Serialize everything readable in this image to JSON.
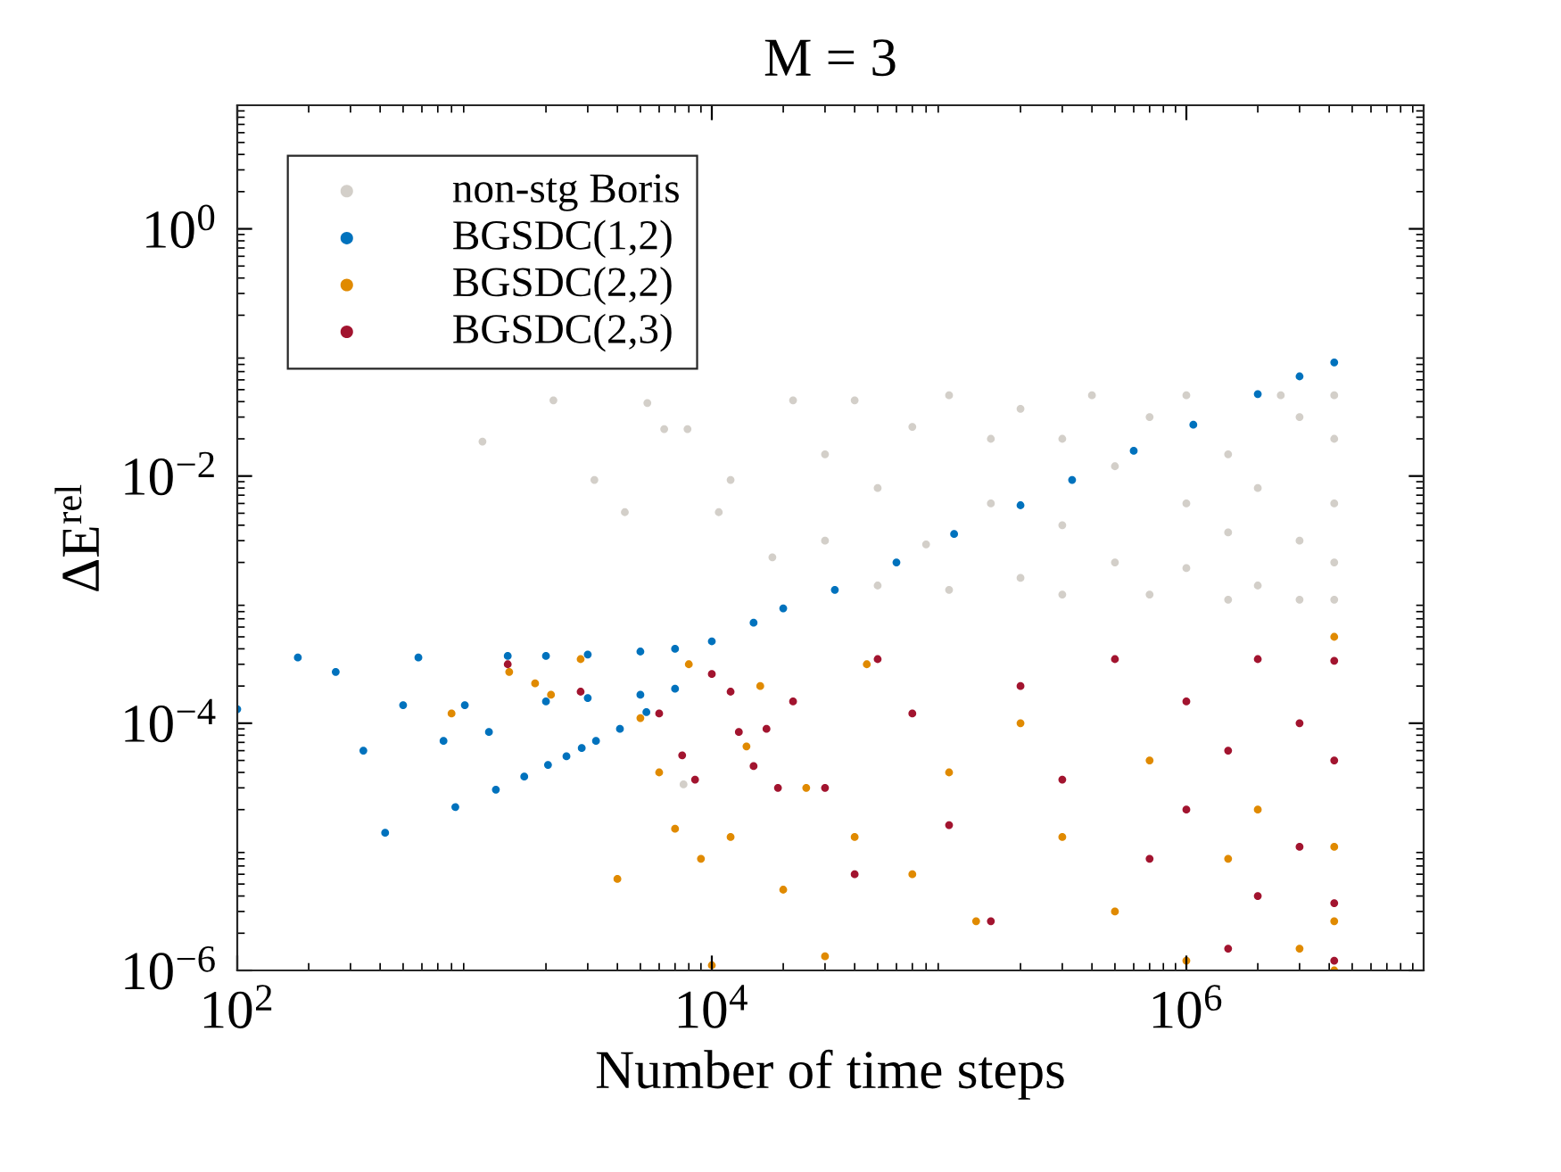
{
  "chart_data": {
    "type": "scatter",
    "title": "M = 3",
    "xlabel": "Number of time steps",
    "ylabel": "ΔE$^{rel}$",
    "log": "xy",
    "xlim": [
      100,
      10000000
    ],
    "ylim": [
      1e-06,
      10
    ],
    "xticks": [
      {
        "value": 100,
        "label": "10$^{2}$"
      },
      {
        "value": 10000,
        "label": "10$^{4}$"
      },
      {
        "value": 1000000,
        "label": "10$^{6}$"
      }
    ],
    "yticks": [
      {
        "value": 1e-06,
        "label": "10$^{−6}$"
      },
      {
        "value": 0.0001,
        "label": "10$^{−4}$"
      },
      {
        "value": 0.01,
        "label": "10$^{−2}$"
      },
      {
        "value": 1,
        "label": "10$^{0}$"
      }
    ],
    "grid": false,
    "legend": "top left",
    "marker": "circle",
    "series": [
      {
        "name": "non-stg Boris",
        "color": "#d3cfc9",
        "x": [
          1080,
          2150,
          3200,
          4300,
          5350,
          6300,
          7600,
          7900,
          10700,
          12000,
          18000,
          22000,
          30000,
          30000,
          40000,
          50000,
          50000,
          70000,
          80000,
          100000,
          100000,
          150000,
          150000,
          200000,
          200000,
          300000,
          300000,
          300000,
          400000,
          500000,
          500000,
          700000,
          700000,
          1000000,
          1000000,
          1000000,
          1500000,
          1500000,
          1500000,
          2000000,
          2000000,
          2500000,
          3000000,
          3000000,
          3000000,
          4200000,
          4200000,
          4200000,
          4200000,
          4200000
        ],
        "values": [
          0.019,
          0.041,
          0.0093,
          0.0051,
          0.039,
          0.024,
          3.2e-05,
          0.024,
          0.0051,
          0.0093,
          0.0022,
          0.041,
          0.003,
          0.015,
          0.041,
          0.0013,
          0.008,
          0.025,
          0.0028,
          0.045,
          0.0012,
          0.006,
          0.02,
          0.0015,
          0.035,
          0.0011,
          0.004,
          0.02,
          0.045,
          0.002,
          0.012,
          0.0011,
          0.03,
          0.0018,
          0.006,
          0.045,
          0.001,
          0.0035,
          0.015,
          0.0013,
          0.008,
          0.045,
          0.001,
          0.003,
          0.03,
          0.001,
          0.002,
          0.006,
          0.02,
          0.045
        ]
      },
      {
        "name": "BGSDC(1,2)",
        "color": "#0072bd",
        "x": [
          100,
          180,
          260,
          340,
          420,
          500,
          580,
          740,
          830,
          910,
          1150,
          1230,
          1380,
          1620,
          2040,
          2440,
          2830,
          3250,
          4100,
          5300,
          2000,
          3000,
          5000,
          7000,
          2000,
          3000,
          5000,
          7000,
          10000,
          15000,
          20000,
          33000,
          60000,
          105000,
          200000,
          330000,
          600000,
          1070000,
          2000000,
          3000000,
          4200000
        ],
        "values": [
          0.00013,
          0.00034,
          0.00026,
          6e-05,
          1.3e-05,
          0.00014,
          0.00034,
          7.2e-05,
          2.1e-05,
          0.00014,
          8.5e-05,
          2.9e-05,
          0.00035,
          3.7e-05,
          4.6e-05,
          5.4e-05,
          6.3e-05,
          7.2e-05,
          9e-05,
          0.000123,
          0.00035,
          0.00036,
          0.00038,
          0.0004,
          0.00015,
          0.00016,
          0.00017,
          0.00019,
          0.00046,
          0.00065,
          0.00085,
          0.0012,
          0.002,
          0.0034,
          0.0058,
          0.0093,
          0.016,
          0.026,
          0.046,
          0.064,
          0.083
        ]
      },
      {
        "name": "BGSDC(2,2)",
        "color": "#e08a00",
        "x": [
          800,
          1400,
          1800,
          2100,
          2800,
          4000,
          5000,
          6000,
          7000,
          8000,
          9000,
          10000,
          12000,
          14000,
          16000,
          20000,
          25000,
          30000,
          40000,
          45000,
          70000,
          100000,
          130000,
          200000,
          300000,
          500000,
          700000,
          1000000,
          1500000,
          2000000,
          3000000,
          4200000,
          4200000,
          4200000,
          4200000
        ],
        "values": [
          0.00012,
          0.00026,
          0.00021,
          0.00017,
          0.00033,
          5.5e-06,
          0.00011,
          4e-05,
          1.4e-05,
          0.0003,
          8e-06,
          1.1e-06,
          1.2e-05,
          6.5e-05,
          0.0002,
          4.5e-06,
          3e-05,
          1.3e-06,
          1.2e-05,
          0.0003,
          6e-06,
          4e-05,
          2.5e-06,
          0.0001,
          1.2e-05,
          3e-06,
          5e-05,
          1.2e-06,
          8e-06,
          2e-05,
          1.5e-06,
          0.0005,
          1e-05,
          2.5e-06,
          1e-06
        ]
      },
      {
        "name": "BGSDC(2,3)",
        "color": "#a2142f",
        "x": [
          1380,
          2800,
          6000,
          7500,
          8500,
          10000,
          12000,
          13000,
          15000,
          17000,
          19000,
          22000,
          30000,
          40000,
          50000,
          70000,
          100000,
          150000,
          200000,
          300000,
          500000,
          700000,
          1000000,
          1000000,
          1500000,
          1500000,
          2000000,
          2000000,
          3000000,
          3000000,
          4200000,
          4200000,
          4200000,
          4200000
        ],
        "values": [
          0.0003,
          0.00018,
          0.00012,
          5.5e-05,
          3.5e-05,
          0.00025,
          0.00018,
          8.5e-05,
          4.5e-05,
          9e-05,
          3e-05,
          0.00015,
          3e-05,
          6e-06,
          0.00033,
          0.00012,
          1.5e-05,
          2.5e-06,
          0.0002,
          3.5e-05,
          0.00033,
          8e-06,
          2e-05,
          0.00015,
          1.5e-06,
          6e-05,
          0.00033,
          4e-06,
          1e-05,
          0.0001,
          0.00032,
          5e-05,
          3.5e-06,
          1.2e-06
        ]
      }
    ]
  }
}
